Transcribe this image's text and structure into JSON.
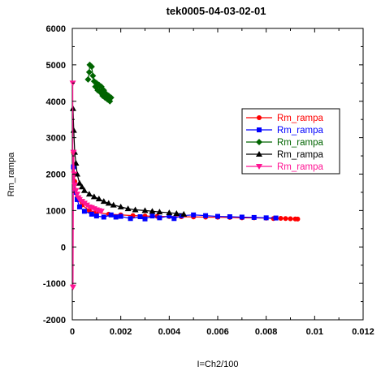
{
  "chart_data": {
    "type": "scatter",
    "title": "tek0005-04-03-02-01",
    "xlabel": "I=Ch2/100",
    "ylabel": "Rm_rampa",
    "xlim": [
      0,
      0.012
    ],
    "ylim": [
      -2000,
      6000
    ],
    "x_ticks": [
      "0",
      "0.002",
      "0.004",
      "0.006",
      "0.008",
      "0.01",
      "0.012"
    ],
    "y_ticks": [
      "6000",
      "5000",
      "4000",
      "3000",
      "2000",
      "1000",
      "0",
      "-1000",
      "-2000"
    ],
    "grid": false,
    "legend_position": "right",
    "series": [
      {
        "name": "Rm_rampa",
        "color": "#ff0000",
        "marker": "circle",
        "points": [
          [
            5e-05,
            2600
          ],
          [
            0.0001,
            1800
          ],
          [
            0.0002,
            1350
          ],
          [
            0.0004,
            1150
          ],
          [
            0.0007,
            1000
          ],
          [
            0.001,
            950
          ],
          [
            0.0015,
            900
          ],
          [
            0.002,
            880
          ],
          [
            0.0025,
            860
          ],
          [
            0.003,
            850
          ],
          [
            0.0035,
            840
          ],
          [
            0.004,
            835
          ],
          [
            0.0045,
            830
          ],
          [
            0.005,
            825
          ],
          [
            0.0055,
            820
          ],
          [
            0.006,
            815
          ],
          [
            0.0065,
            810
          ],
          [
            0.007,
            800
          ],
          [
            0.0075,
            800
          ],
          [
            0.008,
            790
          ],
          [
            0.0083,
            780
          ],
          [
            0.0086,
            785
          ],
          [
            0.0088,
            780
          ],
          [
            0.009,
            775
          ],
          [
            0.0092,
            770
          ],
          [
            0.0093,
            765
          ]
        ]
      },
      {
        "name": "Rm_rampa",
        "color": "#0000ff",
        "marker": "square",
        "points": [
          [
            5e-05,
            2200
          ],
          [
            0.0001,
            1500
          ],
          [
            0.0002,
            1300
          ],
          [
            0.0003,
            1100
          ],
          [
            0.0005,
            980
          ],
          [
            0.0008,
            900
          ],
          [
            0.001,
            850
          ],
          [
            0.0013,
            820
          ],
          [
            0.0016,
            880
          ],
          [
            0.0018,
            820
          ],
          [
            0.002,
            840
          ],
          [
            0.0024,
            780
          ],
          [
            0.0028,
            830
          ],
          [
            0.003,
            770
          ],
          [
            0.0033,
            850
          ],
          [
            0.0036,
            800
          ],
          [
            0.004,
            850
          ],
          [
            0.0042,
            780
          ],
          [
            0.0045,
            860
          ],
          [
            0.005,
            880
          ],
          [
            0.0055,
            860
          ],
          [
            0.006,
            840
          ],
          [
            0.0065,
            830
          ],
          [
            0.007,
            820
          ],
          [
            0.0075,
            810
          ],
          [
            0.008,
            800
          ],
          [
            0.0084,
            795
          ]
        ]
      },
      {
        "name": "Rm_rampa",
        "color": "#006400",
        "marker": "diamond",
        "points": [
          [
            0.00065,
            4600
          ],
          [
            0.0007,
            4800
          ],
          [
            0.00072,
            5000
          ],
          [
            0.0008,
            4950
          ],
          [
            0.00085,
            4700
          ],
          [
            0.0009,
            4550
          ],
          [
            0.00095,
            4400
          ],
          [
            0.001,
            4500
          ],
          [
            0.00105,
            4300
          ],
          [
            0.0011,
            4450
          ],
          [
            0.00115,
            4250
          ],
          [
            0.0012,
            4400
          ],
          [
            0.00125,
            4150
          ],
          [
            0.0013,
            4300
          ],
          [
            0.00135,
            4100
          ],
          [
            0.0014,
            4200
          ],
          [
            0.00145,
            4050
          ],
          [
            0.0015,
            4150
          ],
          [
            0.00155,
            4000
          ],
          [
            0.0016,
            4100
          ]
        ]
      },
      {
        "name": "Rm_rampa",
        "color": "#000000",
        "marker": "triangle-up",
        "points": [
          [
            3e-05,
            3800
          ],
          [
            6e-05,
            3200
          ],
          [
            0.0001,
            2600
          ],
          [
            0.00015,
            2300
          ],
          [
            0.0002,
            2000
          ],
          [
            0.0003,
            1750
          ],
          [
            0.0004,
            1650
          ],
          [
            0.0005,
            1550
          ],
          [
            0.0007,
            1450
          ],
          [
            0.0009,
            1380
          ],
          [
            0.0011,
            1320
          ],
          [
            0.0013,
            1250
          ],
          [
            0.0015,
            1200
          ],
          [
            0.0017,
            1150
          ],
          [
            0.002,
            1100
          ],
          [
            0.0023,
            1050
          ],
          [
            0.0026,
            1020
          ],
          [
            0.003,
            1000
          ],
          [
            0.0033,
            980
          ],
          [
            0.0036,
            960
          ],
          [
            0.004,
            940
          ],
          [
            0.0043,
            920
          ],
          [
            0.0046,
            900
          ]
        ]
      },
      {
        "name": "Rm_rampa",
        "color": "#ff1493",
        "marker": "triangle-down",
        "points": [
          [
            2e-05,
            4500
          ],
          [
            3e-05,
            -1100
          ],
          [
            5e-05,
            2600
          ],
          [
            8e-05,
            2000
          ],
          [
            0.0001,
            1700
          ],
          [
            0.00015,
            1550
          ],
          [
            0.0002,
            1450
          ],
          [
            0.00025,
            1350
          ],
          [
            0.0003,
            1300
          ],
          [
            0.0004,
            1250
          ],
          [
            0.0005,
            1200
          ],
          [
            0.0006,
            1150
          ],
          [
            0.0007,
            1100
          ],
          [
            0.0008,
            1080
          ],
          [
            0.0009,
            1050
          ],
          [
            0.001,
            1020
          ],
          [
            0.0011,
            1000
          ],
          [
            0.0012,
            980
          ]
        ]
      }
    ]
  }
}
